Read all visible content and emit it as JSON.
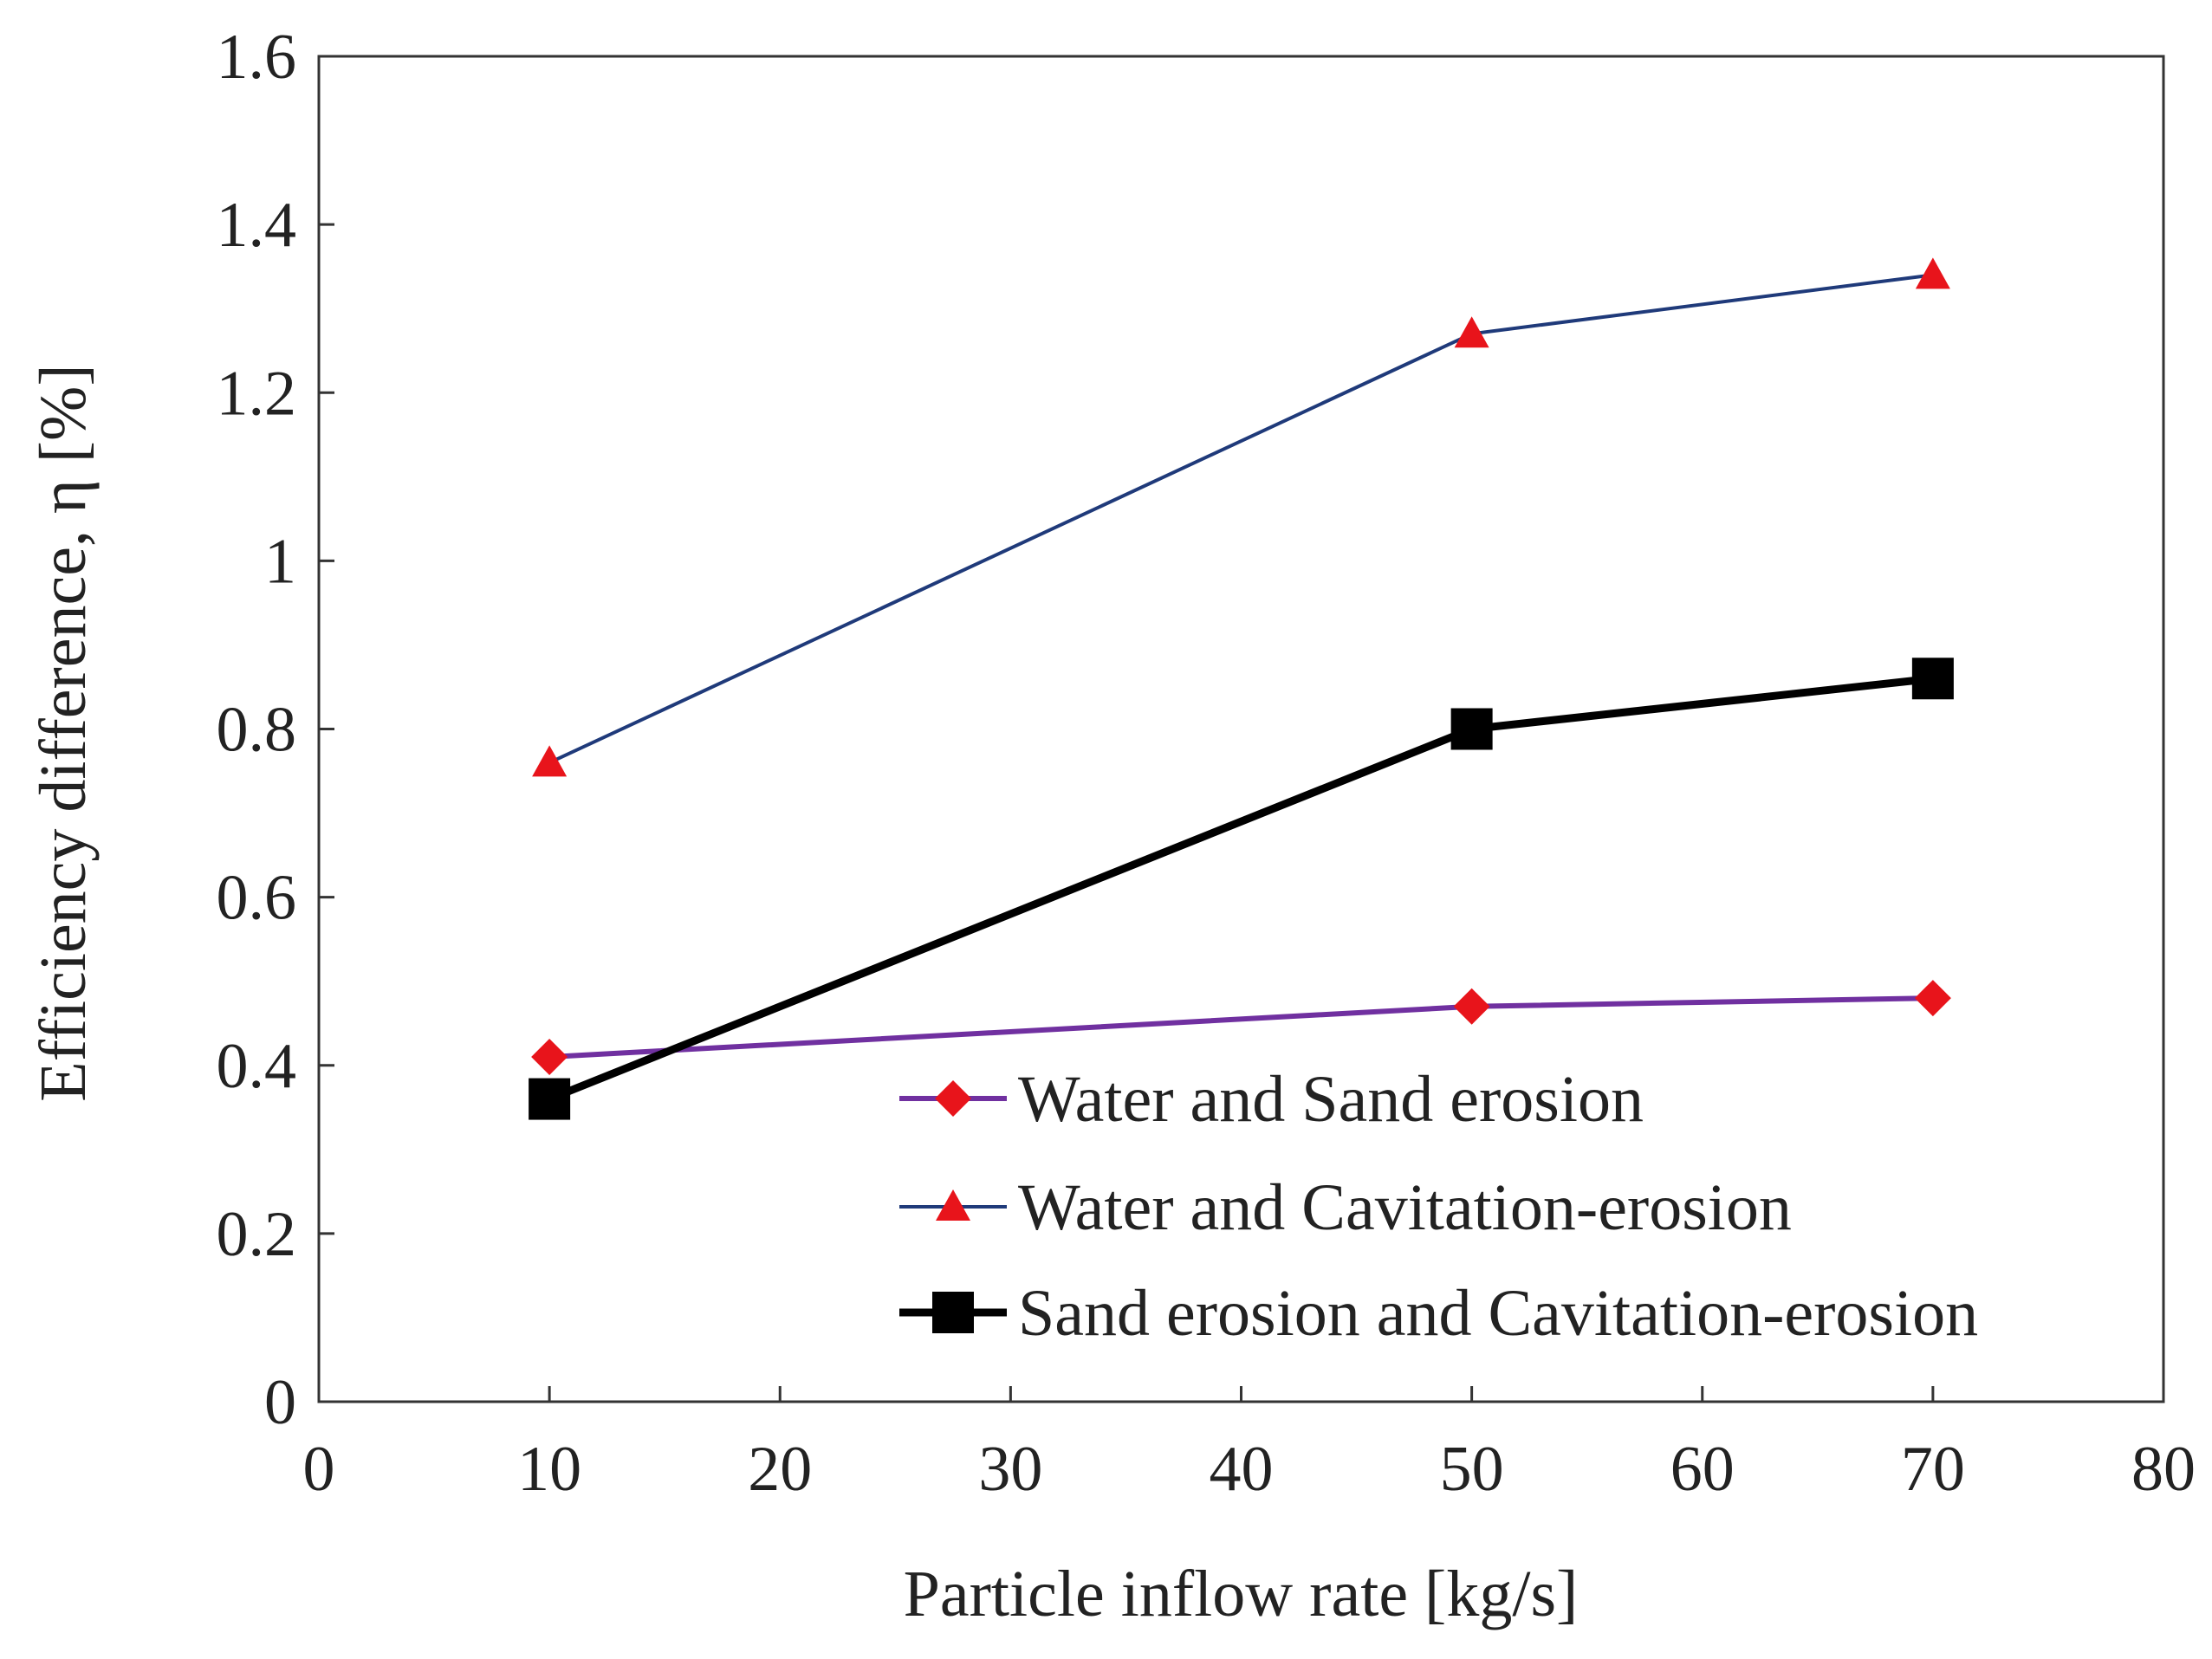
{
  "chart_data": {
    "type": "line",
    "title": "",
    "xlabel": "Particle inflow rate [kg/s]",
    "ylabel": "Efficiency difference, η [%]",
    "xlim": [
      0,
      80
    ],
    "ylim": [
      0,
      1.6
    ],
    "x_ticks": [
      0,
      10,
      20,
      30,
      40,
      50,
      60,
      70,
      80
    ],
    "x_tick_labels": [
      "0",
      "10",
      "20",
      "30",
      "40",
      "50",
      "60",
      "70",
      "80"
    ],
    "y_ticks": [
      0,
      0.2,
      0.4,
      0.6,
      0.8,
      1.0,
      1.2,
      1.4,
      1.6
    ],
    "y_tick_labels": [
      "0",
      "0.2",
      "0.4",
      "0.6",
      "0.8",
      "1",
      "1.2",
      "1.4",
      "1.6"
    ],
    "grid": false,
    "legend_position": "bottom-right",
    "x": [
      10,
      50,
      70
    ],
    "series": [
      {
        "name": "Water and Sand erosion",
        "values": [
          0.41,
          0.47,
          0.48
        ],
        "line_color": "#7030a0",
        "marker": "diamond",
        "marker_color": "#e8141b"
      },
      {
        "name": "Water and Cavitation-erosion",
        "values": [
          0.76,
          1.27,
          1.34
        ],
        "line_color": "#1f3a7a",
        "marker": "triangle",
        "marker_color": "#e8141b"
      },
      {
        "name": "Sand erosion and Cavitation-erosion",
        "values": [
          0.36,
          0.8,
          0.86
        ],
        "line_color": "#000000",
        "marker": "square",
        "marker_color": "#000000"
      }
    ]
  }
}
